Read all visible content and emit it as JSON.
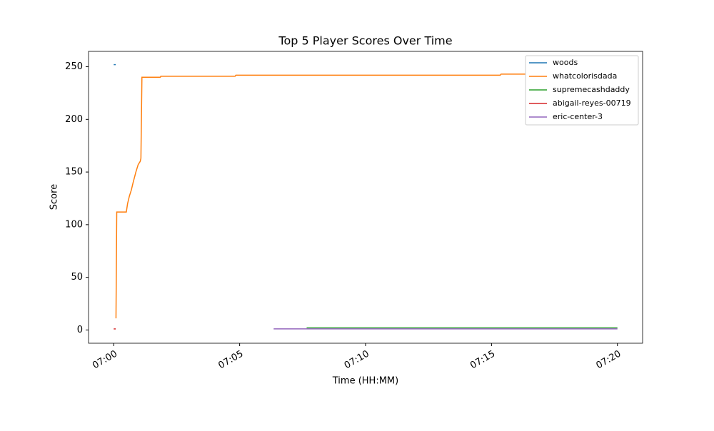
{
  "chart_data": {
    "type": "line",
    "title": "Top 5 Player Scores Over Time",
    "x_label": "Time (HH:MM)",
    "y_label": "Score",
    "xlim": [
      419,
      441
    ],
    "ylim": [
      -12.6,
      264.6
    ],
    "xticks": [
      {
        "value": 420,
        "label": "07:00"
      },
      {
        "value": 425,
        "label": "07:05"
      },
      {
        "value": 430,
        "label": "07:10"
      },
      {
        "value": 435,
        "label": "07:15"
      },
      {
        "value": 440,
        "label": "07:20"
      }
    ],
    "yticks": [
      0,
      50,
      100,
      150,
      200,
      250
    ],
    "legend": "upper right",
    "series": [
      {
        "name": "woods",
        "color": "#1f77b4",
        "x": [
          420.0,
          420.08
        ],
        "values": [
          252,
          252
        ]
      },
      {
        "name": "whatcolorisdada",
        "color": "#ff7f0e",
        "x": [
          420.09,
          420.12,
          420.14,
          420.5,
          420.55,
          420.62,
          420.7,
          420.77,
          420.88,
          420.97,
          421.05,
          421.08,
          421.12,
          421.85,
          421.87,
          424.82,
          424.85,
          435.35,
          435.38,
          440.0
        ],
        "values": [
          11,
          112,
          112,
          112,
          120,
          127,
          133,
          140,
          150,
          157,
          160,
          163,
          240,
          240,
          241,
          241,
          242,
          242,
          243,
          243
        ]
      },
      {
        "name": "supremecashdaddy",
        "color": "#2ca02c",
        "x": [
          427.66,
          440.0
        ],
        "values": [
          2,
          2
        ]
      },
      {
        "name": "abigail-reyes-00719",
        "color": "#d62728",
        "x": [
          420.0,
          420.08
        ],
        "values": [
          1,
          1
        ]
      },
      {
        "name": "eric-center-3",
        "color": "#9467bd",
        "x": [
          426.35,
          440.0
        ],
        "values": [
          1,
          1
        ]
      }
    ]
  }
}
